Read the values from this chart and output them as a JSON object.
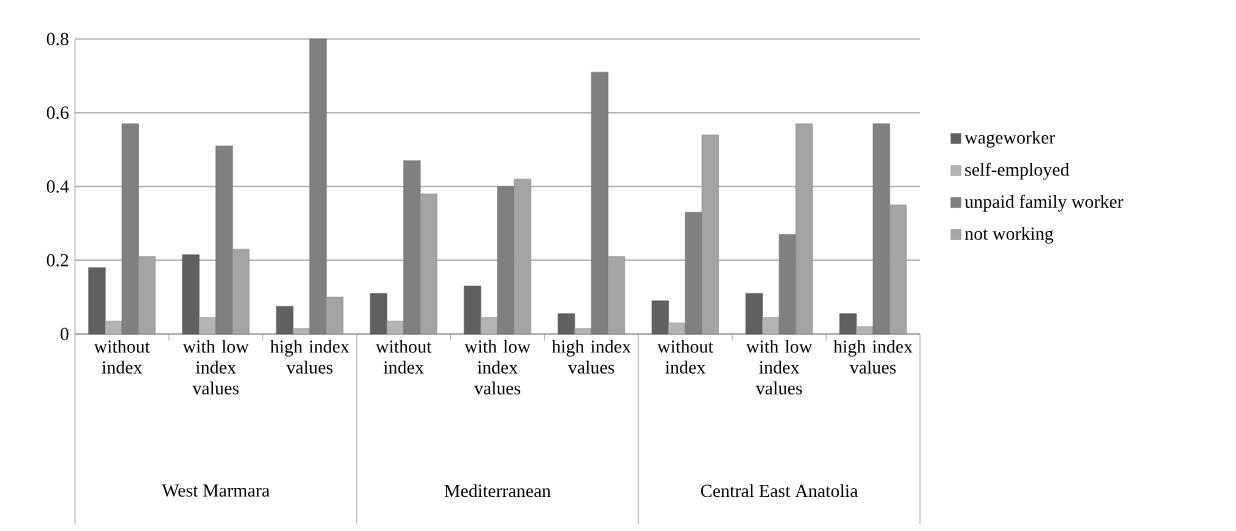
{
  "chart_data": {
    "type": "bar",
    "categories": [
      "without index",
      "with low index values",
      "high index values",
      "without index",
      "with low index values",
      "high index values",
      "without index",
      "with low index values",
      "high index values"
    ],
    "series": [
      {
        "name": "wageworker",
        "color": "#606060",
        "values": [
          0.18,
          0.215,
          0.075,
          0.11,
          0.13,
          0.055,
          0.09,
          0.11,
          0.055
        ]
      },
      {
        "name": "self-employed",
        "color": "#b4b4b4",
        "values": [
          0.035,
          0.045,
          0.015,
          0.035,
          0.045,
          0.015,
          0.03,
          0.045,
          0.02
        ]
      },
      {
        "name": "unpaid family worker",
        "color": "#808080",
        "values": [
          0.57,
          0.51,
          0.8,
          0.47,
          0.4,
          0.71,
          0.33,
          0.27,
          0.57
        ]
      },
      {
        "name": "not working",
        "color": "#a4a4a4",
        "values": [
          0.21,
          0.23,
          0.1,
          0.38,
          0.42,
          0.21,
          0.54,
          0.57,
          0.35
        ]
      }
    ],
    "annotations": [
      "West Marmara",
      "Mediterranean",
      "Central East Anatolia"
    ],
    "ylim": [
      0,
      0.8
    ],
    "yticks": [
      0,
      0.2,
      0.4,
      0.6,
      0.8
    ],
    "grid": "y",
    "legend": "right"
  }
}
